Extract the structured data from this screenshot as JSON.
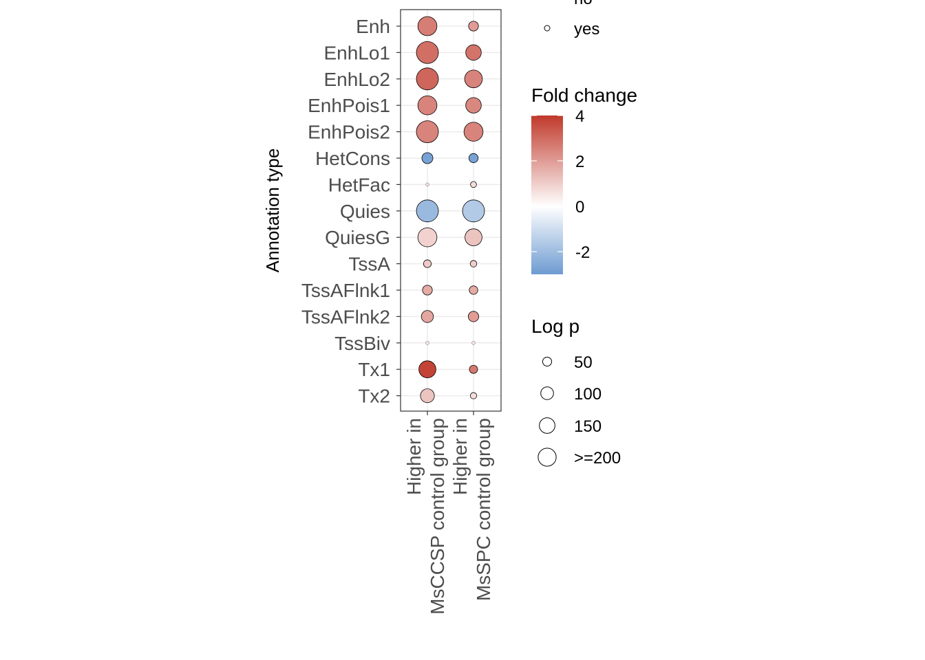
{
  "chart_data": {
    "type": "bubble",
    "y_axis_label": "Annotation type",
    "categories": [
      "Enh",
      "EnhLo1",
      "EnhLo2",
      "EnhPois1",
      "EnhPois2",
      "HetCons",
      "HetFac",
      "Quies",
      "QuiesG",
      "TssA",
      "TssAFlnk1",
      "TssAFlnk2",
      "TssBiv",
      "Tx1",
      "Tx2"
    ],
    "groups": [
      {
        "label_lines": [
          "Higher in",
          "MsCCSP control group"
        ]
      },
      {
        "label_lines": [
          "Higher in",
          "MsSPC control group"
        ]
      }
    ],
    "series": [
      {
        "group": 0,
        "fold_change": [
          2.6,
          2.9,
          3.1,
          2.5,
          2.5,
          -2.8,
          0.6,
          -2.1,
          0.9,
          1.1,
          1.7,
          1.8,
          0.5,
          3.8,
          1.2
        ],
        "log_p": [
          150,
          200,
          200,
          150,
          200,
          50,
          1,
          200,
          150,
          25,
          40,
          60,
          1,
          120,
          80
        ]
      },
      {
        "group": 1,
        "fold_change": [
          2.0,
          2.8,
          2.5,
          2.4,
          2.5,
          -2.8,
          0.7,
          -1.6,
          1.2,
          1.0,
          1.7,
          2.0,
          0.5,
          2.7,
          0.7
        ],
        "log_p": [
          40,
          100,
          130,
          100,
          150,
          35,
          15,
          200,
          120,
          18,
          30,
          45,
          1,
          28,
          17
        ]
      }
    ],
    "significant_legend": {
      "entries": [
        "no",
        "yes"
      ]
    },
    "fold_change_legend": {
      "title": "Fold change",
      "ticks": [
        4,
        2,
        0,
        -2
      ],
      "range": [
        -3,
        4
      ],
      "colors": {
        "high": "#c0392b",
        "mid": "#ffffff",
        "low": "#6e9bd1"
      }
    },
    "log_p_legend": {
      "title": "Log p",
      "entries": [
        "50",
        "100",
        "150",
        ">=200"
      ],
      "values": [
        50,
        100,
        150,
        200
      ]
    },
    "grid": true
  }
}
